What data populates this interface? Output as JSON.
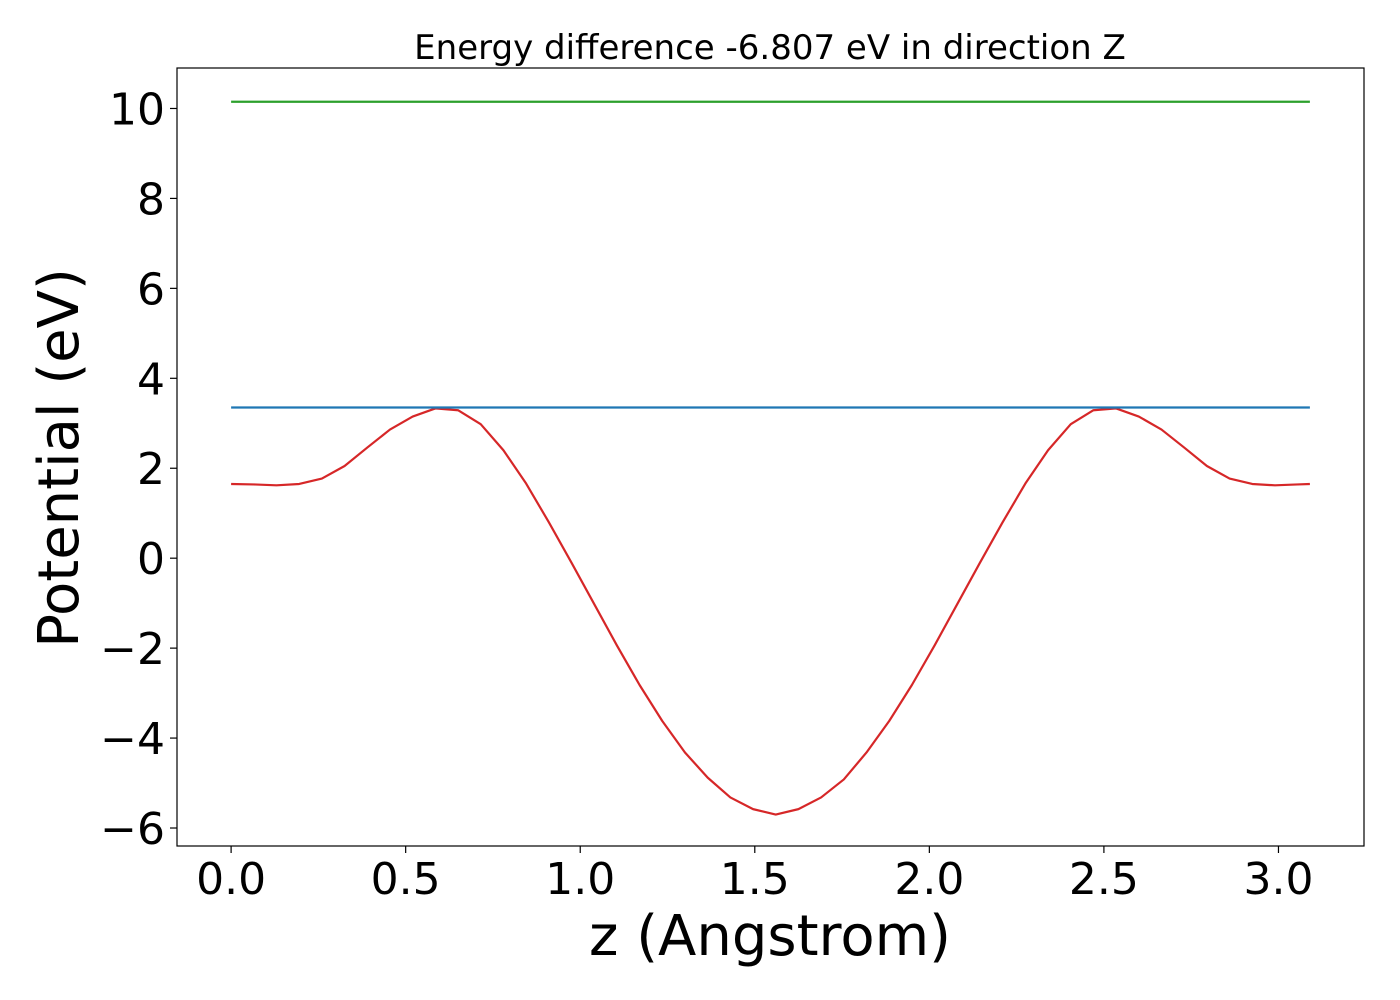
{
  "chart_data": {
    "type": "line",
    "title": "Energy difference -6.807 eV in direction Z",
    "xlabel": "z (Angstrom)",
    "ylabel": "Potential (eV)",
    "xlim": [
      -0.155,
      3.245
    ],
    "ylim": [
      -6.4,
      10.9
    ],
    "xticks": [
      0.0,
      0.5,
      1.0,
      1.5,
      2.0,
      2.5,
      3.0
    ],
    "xtick_labels": [
      "0.0",
      "0.5",
      "1.0",
      "1.5",
      "2.0",
      "2.5",
      "3.0"
    ],
    "yticks": [
      -6,
      -4,
      -2,
      0,
      2,
      4,
      6,
      8,
      10
    ],
    "ytick_labels": [
      "−6",
      "−4",
      "−2",
      "0",
      "2",
      "4",
      "6",
      "8",
      "10"
    ],
    "grid": false,
    "series": [
      {
        "color": "#d62728",
        "x": [
          0.0,
          0.065,
          0.13,
          0.195,
          0.26,
          0.325,
          0.39,
          0.455,
          0.52,
          0.585,
          0.65,
          0.715,
          0.78,
          0.845,
          0.91,
          0.975,
          1.04,
          1.105,
          1.17,
          1.235,
          1.3,
          1.365,
          1.43,
          1.495,
          1.56,
          1.625,
          1.69,
          1.755,
          1.82,
          1.885,
          1.95,
          2.015,
          2.08,
          2.145,
          2.21,
          2.275,
          2.34,
          2.405,
          2.47,
          2.535,
          2.6,
          2.665,
          2.73,
          2.795,
          2.86,
          2.925,
          2.99,
          3.055,
          3.09
        ],
        "y": [
          1.65,
          1.64,
          1.62,
          1.65,
          1.77,
          2.05,
          2.46,
          2.86,
          3.15,
          3.33,
          3.29,
          2.98,
          2.4,
          1.66,
          0.8,
          -0.1,
          -1.02,
          -1.94,
          -2.82,
          -3.62,
          -4.32,
          -4.88,
          -5.32,
          -5.58,
          -5.7,
          -5.58,
          -5.32,
          -4.92,
          -4.32,
          -3.62,
          -2.82,
          -1.94,
          -1.02,
          -0.1,
          0.8,
          1.66,
          2.4,
          2.98,
          3.29,
          3.33,
          3.15,
          2.86,
          2.46,
          2.05,
          1.77,
          1.65,
          1.62,
          1.64,
          1.65
        ]
      },
      {
        "color": "#1f77b4",
        "x": [
          0.0,
          3.09
        ],
        "y": [
          3.35,
          3.35
        ]
      },
      {
        "color": "#2ca02c",
        "x": [
          0.0,
          3.09
        ],
        "y": [
          10.15,
          10.15
        ]
      }
    ]
  }
}
